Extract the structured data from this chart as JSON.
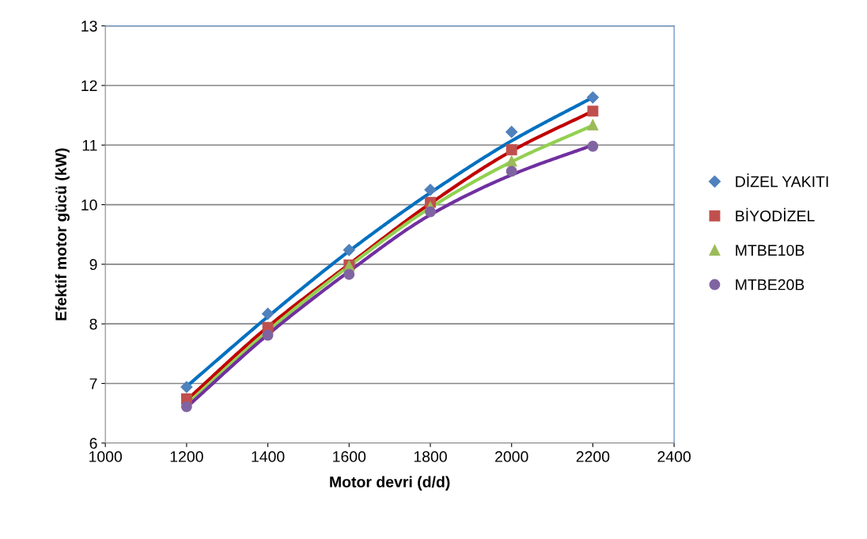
{
  "chart_data": {
    "type": "scatter",
    "xlabel": "Motor devri (d/d)",
    "ylabel": "Efektif motor gücü (kW)",
    "x": [
      1200,
      1400,
      1600,
      1800,
      2000,
      2200
    ],
    "xlim": [
      1000,
      2400
    ],
    "xticks": [
      1000,
      1200,
      1400,
      1600,
      1800,
      2000,
      2200,
      2400
    ],
    "ylim": [
      6,
      13
    ],
    "yticks": [
      6,
      7,
      8,
      9,
      10,
      11,
      12,
      13
    ],
    "grid": "y",
    "legend": "right",
    "series": [
      {
        "name": "DİZEL YAKITI",
        "color": "#4f81bd",
        "marker": "diamond",
        "values": [
          6.94,
          8.17,
          9.24,
          10.25,
          11.22,
          11.8
        ]
      },
      {
        "name": "BİYODİZEL",
        "color": "#c0504d",
        "marker": "square",
        "values": [
          6.74,
          7.94,
          8.99,
          10.04,
          10.92,
          11.57
        ]
      },
      {
        "name": "MTBE10B",
        "color": "#9bbb59",
        "marker": "triangle",
        "values": [
          null,
          null,
          8.97,
          9.96,
          10.73,
          11.34
        ]
      },
      {
        "name": "MTBE20B",
        "color": "#8064a2",
        "marker": "circle",
        "values": [
          6.61,
          7.81,
          8.83,
          9.88,
          10.56,
          10.98
        ]
      },
      {
        "type": "line",
        "color": "#0070c0",
        "x": [
          1200,
          1400,
          1600,
          1800,
          2000,
          2200
        ],
        "values": [
          6.95,
          8.12,
          9.22,
          10.2,
          11.07,
          11.8
        ]
      },
      {
        "type": "line",
        "color": "#c00000",
        "x": [
          1200,
          1400,
          1600,
          1800,
          2000,
          2200
        ],
        "values": [
          6.72,
          7.95,
          9.0,
          10.02,
          10.9,
          11.57
        ]
      },
      {
        "type": "line",
        "color": "#92d050",
        "x": [
          1200,
          1400,
          1600,
          1800,
          2000,
          2200
        ],
        "values": [
          6.65,
          7.88,
          8.97,
          9.95,
          10.72,
          11.33
        ]
      },
      {
        "type": "line",
        "color": "#7030a0",
        "x": [
          1200,
          1400,
          1600,
          1800,
          2000,
          2200
        ],
        "values": [
          6.6,
          7.82,
          8.88,
          9.83,
          10.5,
          11.0
        ]
      }
    ]
  }
}
